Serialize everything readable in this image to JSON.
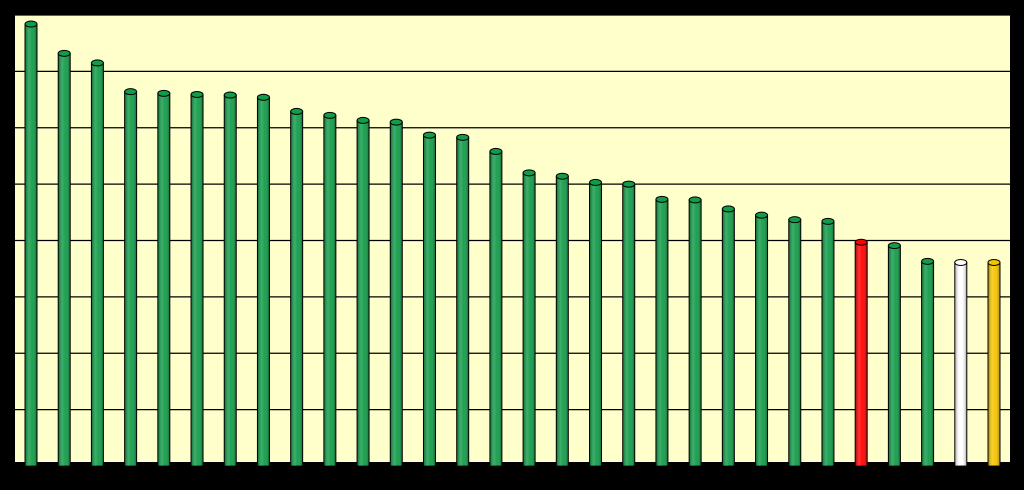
{
  "chart_data": {
    "type": "bar",
    "title": "",
    "xlabel": "",
    "ylabel": "",
    "ylim": [
      0,
      8
    ],
    "grid": true,
    "legend": "none",
    "values": [
      7.84,
      7.32,
      7.15,
      6.64,
      6.61,
      6.59,
      6.58,
      6.54,
      6.29,
      6.22,
      6.13,
      6.1,
      5.87,
      5.83,
      5.58,
      5.2,
      5.14,
      5.03,
      5.0,
      4.73,
      4.72,
      4.56,
      4.45,
      4.37,
      4.34,
      3.97,
      3.91,
      3.63,
      3.61,
      3.61
    ],
    "colors": {
      "plot_background": "#ffffcc",
      "outer_background": "#000000",
      "grid": "#000000",
      "default_bar": "#119c48",
      "highlight_red": "#ff0000",
      "highlight_white": "#ffffff",
      "highlight_gold": "#f5c400"
    },
    "bar_colors": [
      "default_bar",
      "default_bar",
      "default_bar",
      "default_bar",
      "default_bar",
      "default_bar",
      "default_bar",
      "default_bar",
      "default_bar",
      "default_bar",
      "default_bar",
      "default_bar",
      "default_bar",
      "default_bar",
      "default_bar",
      "default_bar",
      "default_bar",
      "default_bar",
      "default_bar",
      "default_bar",
      "default_bar",
      "default_bar",
      "default_bar",
      "default_bar",
      "default_bar",
      "highlight_red",
      "default_bar",
      "default_bar",
      "highlight_white",
      "highlight_gold"
    ]
  }
}
